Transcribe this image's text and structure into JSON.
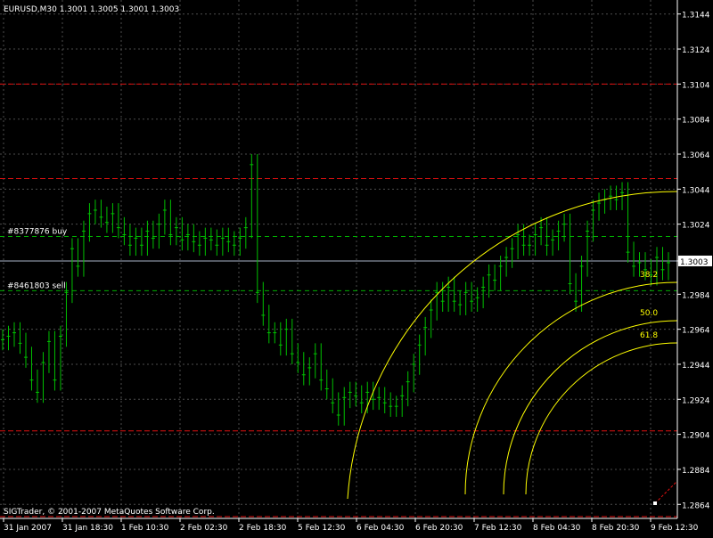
{
  "window": {
    "header": "EURUSD,M30  1.3001 1.3005 1.3001 1.3003",
    "copyright": "SIGTrader, © 2001-2007 MetaQuotes Software Corp."
  },
  "colors": {
    "background": "#000000",
    "grid": "#4d4d4d",
    "candle": "#00c000",
    "axis": "#ffffff",
    "bid_line": "#aab4c8",
    "order_line": "#00b000",
    "level_line": "#e01010",
    "fibo": "#ffff00"
  },
  "chart_data": {
    "type": "line",
    "symbol": "EURUSD",
    "timeframe": "M30",
    "ohlc_header": {
      "open": 1.3001,
      "high": 1.3005,
      "low": 1.3001,
      "close": 1.3003
    },
    "ylim": [
      1.2856,
      1.3152
    ],
    "y_ticks": [
      "1.3144",
      "1.3124",
      "1.3104",
      "1.3084",
      "1.3064",
      "1.3044",
      "1.3024",
      "1.3003",
      "1.2984",
      "1.2964",
      "1.2944",
      "1.2924",
      "1.2904",
      "1.2884",
      "1.2864"
    ],
    "x_ticks": [
      "31 Jan 2007",
      "31 Jan 18:30",
      "1 Feb 10:30",
      "2 Feb 02:30",
      "2 Feb 18:30",
      "5 Feb 12:30",
      "6 Feb 04:30",
      "6 Feb 20:30",
      "7 Feb 12:30",
      "8 Feb 04:30",
      "8 Feb 20:30",
      "9 Feb 12:30"
    ],
    "current_price": "1.3003",
    "orders": [
      {
        "label": "#8377876 buy",
        "price": 1.3017
      },
      {
        "label": "#8461803 sell",
        "price": 1.2986
      }
    ],
    "red_levels": [
      1.3104,
      1.305,
      1.2906,
      1.2857
    ],
    "fibonacci_arcs": [
      "61.8",
      "50.0",
      "38.2"
    ],
    "series": [
      {
        "values": [
          1.2958,
          1.296,
          1.2962,
          1.2956,
          1.2948,
          1.2935,
          1.2928,
          1.2945,
          1.2957,
          1.2935,
          1.296,
          1.2985,
          1.301,
          1.3,
          1.302,
          1.303,
          1.3032,
          1.3028,
          1.3025,
          1.303,
          1.3022,
          1.3018,
          1.3012,
          1.3016,
          1.3012,
          1.302,
          1.3016,
          1.3024,
          1.3032,
          1.3018,
          1.3022,
          1.3015,
          1.3018,
          1.3014,
          1.3012,
          1.3016,
          1.3015,
          1.3012,
          1.3016,
          1.3014,
          1.3012,
          1.3016,
          1.3022,
          1.3058,
          1.2985,
          1.2972,
          1.2962,
          1.2962,
          1.2955,
          1.2964,
          1.295,
          1.2945,
          1.2938,
          1.2942,
          1.295,
          1.2935,
          1.293,
          1.2922,
          1.2915,
          1.2925,
          1.2928,
          1.2926,
          1.2922,
          1.2928,
          1.2924,
          1.2925,
          1.2922,
          1.292,
          1.292,
          1.2926,
          1.2934,
          1.2944,
          1.2955,
          1.2965,
          1.2975,
          1.2985,
          1.298,
          1.2988,
          1.298,
          1.2978,
          1.2985,
          1.298,
          1.2982,
          1.2988,
          1.2995,
          1.2992,
          1.3,
          1.3005,
          1.301,
          1.3018,
          1.3012,
          1.3012,
          1.3018,
          1.3022,
          1.3012,
          1.3015,
          1.302,
          1.3024,
          1.299,
          1.298,
          1.3,
          1.302,
          1.3032,
          1.3036,
          1.3038,
          1.304,
          1.3038,
          1.3042,
          1.3008,
          1.3,
          1.3002,
          1.2998,
          1.2995,
          1.3005,
          1.2998,
          1.3002
        ]
      }
    ]
  }
}
